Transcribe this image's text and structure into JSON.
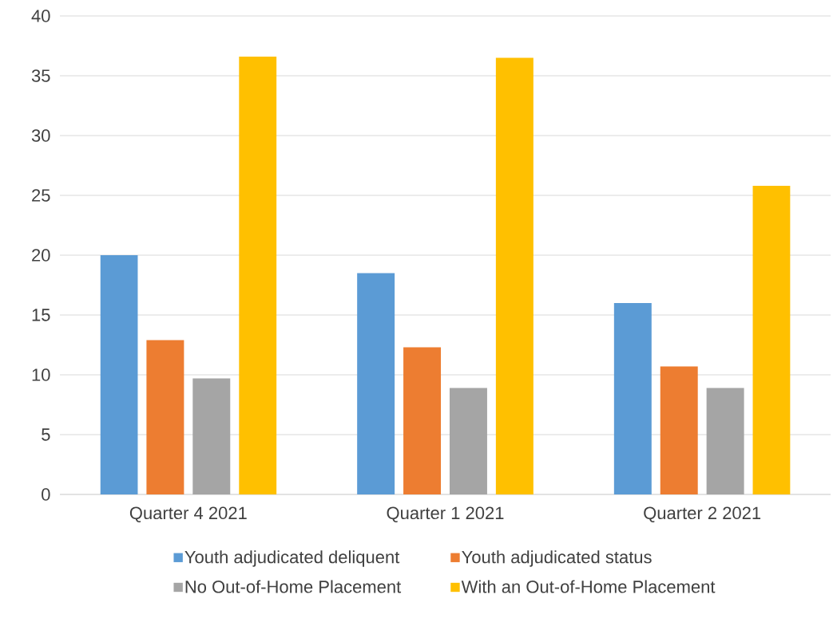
{
  "chart_data": {
    "type": "bar",
    "categories": [
      "Quarter 4 2021",
      "Quarter 1 2021",
      "Quarter 2 2021"
    ],
    "series": [
      {
        "name": "Youth adjudicated deliquent",
        "color": "#5b9bd5",
        "values": [
          20.0,
          18.5,
          16.0
        ]
      },
      {
        "name": "Youth adjudicated status",
        "color": "#ed7d31",
        "values": [
          12.9,
          12.3,
          10.7
        ]
      },
      {
        "name": "No Out-of-Home Placement",
        "color": "#a5a5a5",
        "values": [
          9.7,
          8.9,
          8.9
        ]
      },
      {
        "name": "With an Out-of-Home Placement",
        "color": "#ffc000",
        "values": [
          36.6,
          36.5,
          25.8
        ]
      }
    ],
    "ylim": [
      0,
      40
    ],
    "yticks": [
      0,
      5,
      10,
      15,
      20,
      25,
      30,
      35,
      40
    ],
    "grid": "y",
    "legend": "bottom"
  }
}
